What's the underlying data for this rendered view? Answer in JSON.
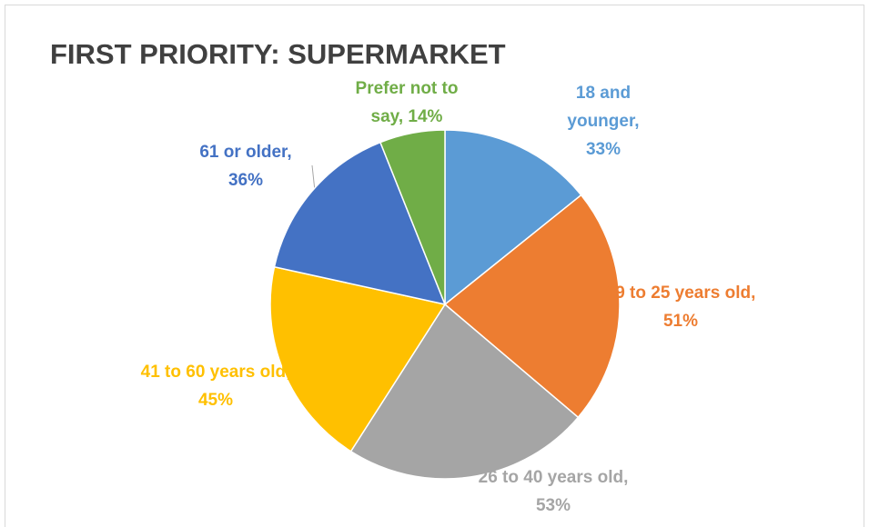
{
  "chart_data": {
    "type": "pie",
    "title": "FIRST PRIORITY: SUPERMARKET",
    "values": [
      33,
      51,
      53,
      45,
      36,
      14
    ],
    "value_labels": [
      "18 and younger, 33%",
      "19 to 25 years old, 51%",
      "26 to 40 years old, 53%",
      "41 to 60 years old, 45%",
      "61 or older, 36%",
      "Prefer not to say, 14%"
    ],
    "colors": [
      "#5b9bd5",
      "#ed7d31",
      "#a5a5a5",
      "#ffc000",
      "#4472c4",
      "#70ad47"
    ]
  }
}
